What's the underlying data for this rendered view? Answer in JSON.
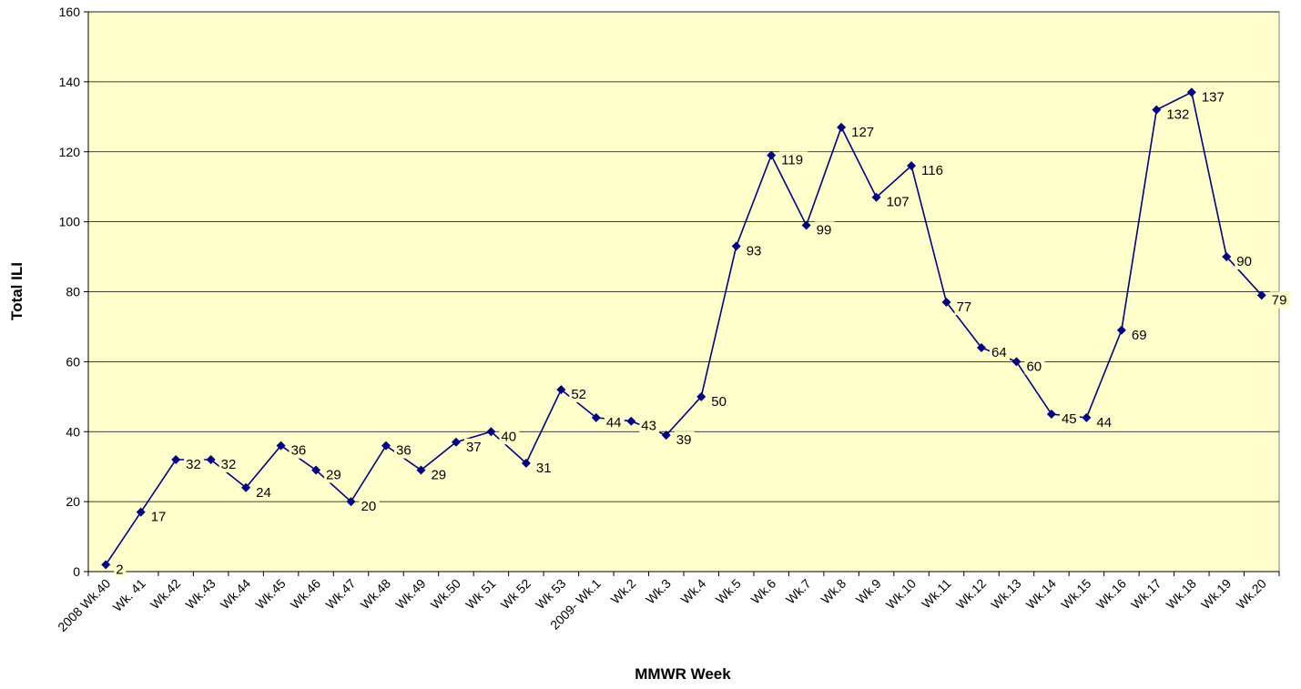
{
  "chart_data": {
    "type": "line",
    "xlabel": "MMWR Week",
    "ylabel": "Total ILI",
    "categories": [
      "2008 Wk.40",
      "Wk. 41",
      "Wk.42",
      "Wk.43",
      "Wk.44",
      "Wk.45",
      "Wk.46",
      "Wk.47",
      "Wk.48",
      "Wk.49",
      "Wk.50",
      "Wk 51",
      "Wk 52",
      "Wk 53",
      "2009- Wk.1",
      "Wk.2",
      "Wk.3",
      "Wk.4",
      "Wk.5",
      "Wk.6",
      "Wk.7",
      "Wk.8",
      "Wk.9",
      "Wk.10",
      "Wk.11",
      "Wk.12",
      "Wk.13",
      "Wk.14",
      "Wk.15",
      "Wk.16",
      "Wk.17",
      "Wk.18",
      "Wk.19",
      "Wk.20"
    ],
    "values": [
      2,
      17,
      32,
      32,
      24,
      36,
      29,
      20,
      36,
      29,
      37,
      40,
      31,
      52,
      44,
      43,
      39,
      50,
      93,
      119,
      99,
      127,
      107,
      116,
      77,
      64,
      60,
      45,
      44,
      69,
      132,
      137,
      90,
      79
    ],
    "color": "#000080",
    "background": "#ffffcc",
    "ylim": [
      0,
      160
    ],
    "yticks": [
      0,
      20,
      40,
      60,
      80,
      100,
      120,
      140,
      160
    ],
    "grid": true
  }
}
